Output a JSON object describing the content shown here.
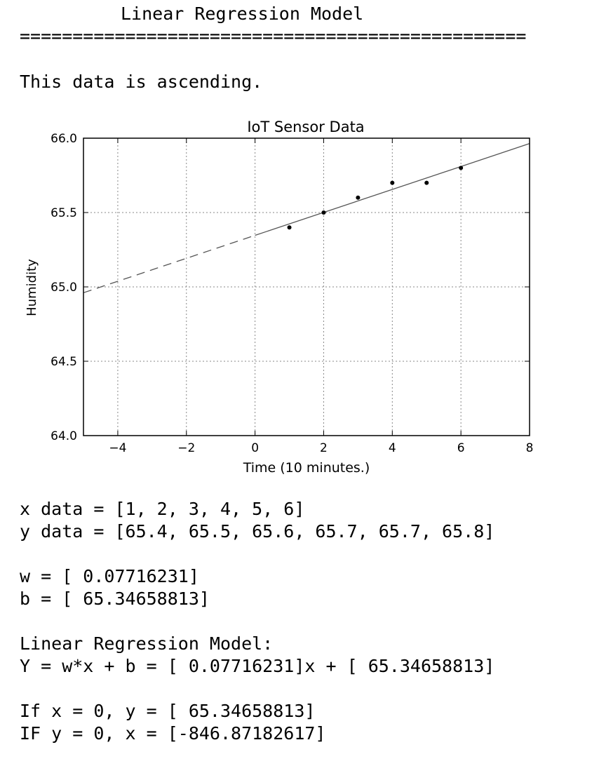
{
  "header": {
    "title": "Linear Regression Model",
    "rule": "================================================"
  },
  "description": "This data is ascending.",
  "chart_data": {
    "type": "scatter",
    "title": "IoT Sensor Data",
    "xlabel": "Time (10 minutes.)",
    "ylabel": "Humidity",
    "xlim": [
      -5,
      8
    ],
    "ylim": [
      64.0,
      66.0
    ],
    "xticks": [
      -4,
      -2,
      0,
      2,
      4,
      6,
      8
    ],
    "xtick_labels": [
      "−4",
      "−2",
      "0",
      "2",
      "4",
      "6",
      "8"
    ],
    "yticks": [
      64.0,
      64.5,
      65.0,
      65.5,
      66.0
    ],
    "ytick_labels": [
      "64.0",
      "64.5",
      "65.0",
      "65.5",
      "66.0"
    ],
    "grid": true,
    "series": [
      {
        "x": [
          1,
          2,
          3,
          4,
          5,
          6
        ],
        "y": [
          65.4,
          65.5,
          65.6,
          65.7,
          65.7,
          65.8
        ]
      }
    ],
    "fit_line": {
      "w": 0.07716231,
      "b": 65.34658813,
      "solid_range": [
        0,
        8
      ],
      "dashed_range": [
        -5,
        0
      ]
    }
  },
  "results": {
    "x_line": "x data = [1, 2, 3, 4, 5, 6]",
    "y_line": "y data = [65.4, 65.5, 65.6, 65.7, 65.7, 65.8]",
    "w_line": "w = [ 0.07716231]",
    "b_line": "b = [ 65.34658813]",
    "model_heading": "Linear Regression Model:",
    "model_equation": "Y = w*x + b = [ 0.07716231]x + [ 65.34658813]",
    "if_x_zero": "If x = 0, y = [ 65.34658813]",
    "if_y_zero": "IF y = 0, x = [-846.87182617]"
  }
}
